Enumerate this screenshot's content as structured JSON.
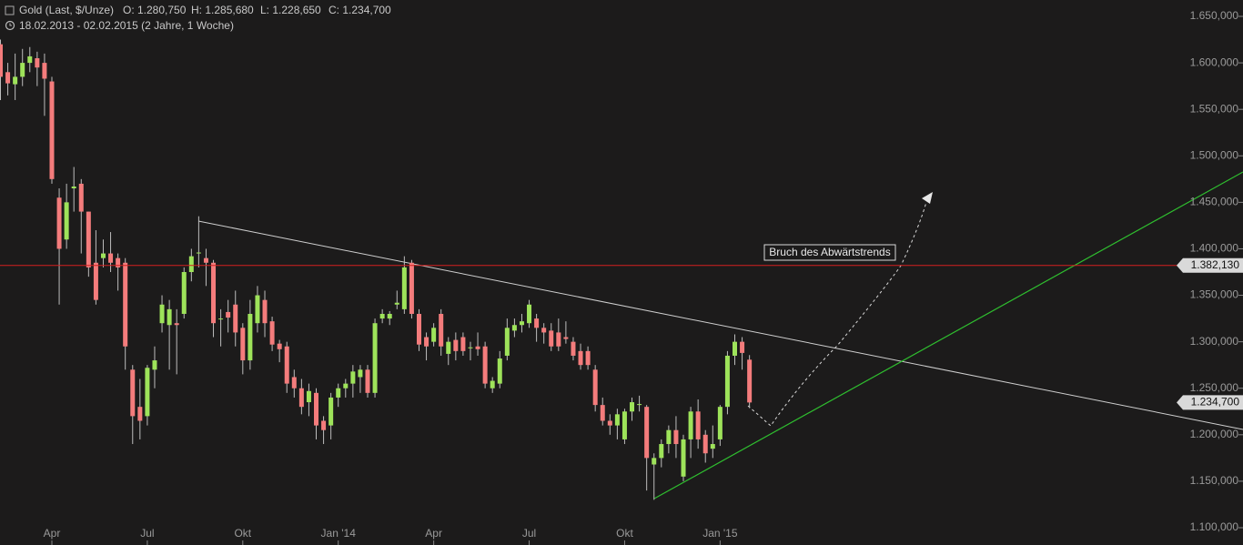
{
  "chart_data": {
    "type": "candlestick",
    "title": "Gold (Last, $/Unze)",
    "ohlc_labels": [
      "O: 1.280,750",
      "H: 1.285,680",
      "L: 1.228,650",
      "C: 1.234,700"
    ],
    "subtitle": "18.02.2013 - 02.02.2015 (2 Jahre, 1 Woche)",
    "annotation": "Bruch des Abwärtstrends",
    "up_color": "#9ee35a",
    "down_color": "#f47c7c",
    "x": [
      "2013-02-18",
      "2013-02-25",
      "2013-03-04",
      "2013-03-11",
      "2013-03-18",
      "2013-03-25",
      "2013-04-01",
      "2013-04-08",
      "2013-04-15",
      "2013-04-22",
      "2013-04-29",
      "2013-05-06",
      "2013-05-13",
      "2013-05-20",
      "2013-05-27",
      "2013-06-03",
      "2013-06-10",
      "2013-06-17",
      "2013-06-24",
      "2013-07-01",
      "2013-07-08",
      "2013-07-15",
      "2013-07-22",
      "2013-07-29",
      "2013-08-05",
      "2013-08-12",
      "2013-08-19",
      "2013-08-26",
      "2013-09-02",
      "2013-09-09",
      "2013-09-16",
      "2013-09-23",
      "2013-09-30",
      "2013-10-07",
      "2013-10-14",
      "2013-10-21",
      "2013-10-28",
      "2013-11-04",
      "2013-11-11",
      "2013-11-18",
      "2013-11-25",
      "2013-12-02",
      "2013-12-09",
      "2013-12-16",
      "2013-12-23",
      "2013-12-30",
      "2014-01-06",
      "2014-01-13",
      "2014-01-20",
      "2014-01-27",
      "2014-02-03",
      "2014-02-10",
      "2014-02-17",
      "2014-02-24",
      "2014-03-03",
      "2014-03-10",
      "2014-03-17",
      "2014-03-24",
      "2014-03-31",
      "2014-04-07",
      "2014-04-14",
      "2014-04-21",
      "2014-04-28",
      "2014-05-05",
      "2014-05-12",
      "2014-05-19",
      "2014-05-26",
      "2014-06-02",
      "2014-06-09",
      "2014-06-16",
      "2014-06-23",
      "2014-06-30",
      "2014-07-07",
      "2014-07-14",
      "2014-07-21",
      "2014-07-28",
      "2014-08-04",
      "2014-08-11",
      "2014-08-18",
      "2014-08-25",
      "2014-09-01",
      "2014-09-08",
      "2014-09-15",
      "2014-09-22",
      "2014-09-29",
      "2014-10-06",
      "2014-10-13",
      "2014-10-20",
      "2014-10-27",
      "2014-11-03",
      "2014-11-10",
      "2014-11-17",
      "2014-11-24",
      "2014-12-01",
      "2014-12-08",
      "2014-12-15",
      "2014-12-22",
      "2014-12-29",
      "2015-01-05",
      "2015-01-12",
      "2015-01-19",
      "2015-01-26",
      "2015-02-02"
    ],
    "open": [
      1620,
      1590,
      1577,
      1585,
      1600,
      1605,
      1600,
      1580,
      1455,
      1410,
      1465,
      1470,
      1440,
      1385,
      1390,
      1395,
      1390,
      1385,
      1270,
      1230,
      1220,
      1270,
      1320,
      1318,
      1320,
      1330,
      1375,
      1395,
      1390,
      1385,
      1325,
      1332,
      1340,
      1315,
      1280,
      1320,
      1345,
      1322,
      1298,
      1295,
      1262,
      1250,
      1235,
      1245,
      1215,
      1210,
      1240,
      1250,
      1255,
      1262,
      1270,
      1245,
      1325,
      1325,
      1340,
      1335,
      1385,
      1330,
      1305,
      1300,
      1330,
      1287,
      1302,
      1305,
      1293,
      1295,
      1295,
      1250,
      1255,
      1285,
      1312,
      1318,
      1320,
      1325,
      1315,
      1312,
      1310,
      1305,
      1300,
      1290,
      1290,
      1270,
      1232,
      1215,
      1210,
      1195,
      1225,
      1232,
      1230,
      1168,
      1175,
      1190,
      1205,
      1155,
      1195,
      1225,
      1200,
      1185,
      1195,
      1230,
      1285,
      1300,
      1280.75
    ],
    "high": [
      1625,
      1600,
      1610,
      1615,
      1617,
      1612,
      1610,
      1585,
      1465,
      1470,
      1488,
      1475,
      1440,
      1420,
      1410,
      1418,
      1395,
      1390,
      1275,
      1260,
      1275,
      1295,
      1350,
      1345,
      1335,
      1380,
      1400,
      1435,
      1400,
      1388,
      1335,
      1345,
      1355,
      1320,
      1345,
      1360,
      1355,
      1327,
      1302,
      1300,
      1270,
      1260,
      1255,
      1250,
      1220,
      1245,
      1255,
      1260,
      1275,
      1275,
      1275,
      1325,
      1335,
      1333,
      1355,
      1392,
      1388,
      1335,
      1310,
      1320,
      1335,
      1305,
      1310,
      1310,
      1300,
      1310,
      1300,
      1262,
      1290,
      1325,
      1325,
      1330,
      1345,
      1330,
      1320,
      1320,
      1325,
      1322,
      1305,
      1298,
      1295,
      1275,
      1240,
      1222,
      1228,
      1228,
      1240,
      1242,
      1232,
      1180,
      1195,
      1210,
      1220,
      1200,
      1230,
      1238,
      1205,
      1210,
      1232,
      1290,
      1308,
      1305,
      1285.68
    ],
    "low": [
      1560,
      1565,
      1560,
      1575,
      1590,
      1575,
      1543,
      1470,
      1340,
      1400,
      1440,
      1395,
      1370,
      1340,
      1380,
      1375,
      1355,
      1270,
      1190,
      1195,
      1210,
      1250,
      1310,
      1270,
      1265,
      1325,
      1365,
      1380,
      1360,
      1305,
      1295,
      1310,
      1295,
      1265,
      1270,
      1310,
      1305,
      1290,
      1278,
      1245,
      1240,
      1222,
      1220,
      1195,
      1190,
      1195,
      1230,
      1240,
      1240,
      1245,
      1240,
      1240,
      1320,
      1318,
      1335,
      1330,
      1325,
      1290,
      1280,
      1295,
      1285,
      1275,
      1280,
      1285,
      1280,
      1285,
      1250,
      1245,
      1250,
      1280,
      1305,
      1310,
      1315,
      1300,
      1298,
      1290,
      1290,
      1298,
      1280,
      1270,
      1270,
      1225,
      1210,
      1200,
      1195,
      1190,
      1215,
      1225,
      1140,
      1130,
      1165,
      1180,
      1175,
      1150,
      1175,
      1185,
      1170,
      1175,
      1188,
      1222,
      1275,
      1270,
      1228.65
    ],
    "close": [
      1585,
      1578,
      1585,
      1600,
      1607,
      1595,
      1583,
      1475,
      1400,
      1450,
      1467,
      1440,
      1380,
      1345,
      1395,
      1385,
      1380,
      1295,
      1220,
      1215,
      1272,
      1280,
      1340,
      1335,
      1318,
      1375,
      1392,
      1396,
      1385,
      1320,
      1325,
      1326,
      1310,
      1280,
      1330,
      1350,
      1320,
      1297,
      1292,
      1255,
      1250,
      1230,
      1247,
      1210,
      1205,
      1240,
      1250,
      1255,
      1268,
      1270,
      1245,
      1320,
      1330,
      1330,
      1342,
      1380,
      1330,
      1297,
      1295,
      1315,
      1295,
      1300,
      1290,
      1290,
      1294,
      1292,
      1255,
      1258,
      1282,
      1315,
      1318,
      1322,
      1340,
      1315,
      1310,
      1295,
      1295,
      1303,
      1285,
      1275,
      1275,
      1232,
      1215,
      1210,
      1222,
      1225,
      1235,
      1233,
      1175,
      1175,
      1190,
      1205,
      1190,
      1195,
      1225,
      1195,
      1180,
      1190,
      1230,
      1285,
      1300,
      1288,
      1234.7
    ],
    "ylim": [
      1100,
      1650
    ],
    "yticks": [
      {
        "value": 1100,
        "label": "1.100,000"
      },
      {
        "value": 1150,
        "label": "1.150,000"
      },
      {
        "value": 1200,
        "label": "1.200,000"
      },
      {
        "value": 1250,
        "label": "1.250,000"
      },
      {
        "value": 1300,
        "label": "1.300,000"
      },
      {
        "value": 1350,
        "label": "1.350,000"
      },
      {
        "value": 1400,
        "label": "1.400,000"
      },
      {
        "value": 1450,
        "label": "1.450,000"
      },
      {
        "value": 1500,
        "label": "1.500,000"
      },
      {
        "value": 1550,
        "label": "1.550,000"
      },
      {
        "value": 1600,
        "label": "1.600,000"
      },
      {
        "value": 1650,
        "label": "1.650,000"
      }
    ],
    "xticks": [
      {
        "value": "2013-04-08",
        "label": "Apr"
      },
      {
        "value": "2013-07-08",
        "label": "Jul"
      },
      {
        "value": "2013-10-07",
        "label": "Okt"
      },
      {
        "value": "2014-01-06",
        "label": "Jan '14"
      },
      {
        "value": "2014-04-07",
        "label": "Apr"
      },
      {
        "value": "2014-07-07",
        "label": "Jul"
      },
      {
        "value": "2014-10-06",
        "label": "Okt"
      },
      {
        "value": "2015-01-05",
        "label": "Jan '15"
      }
    ],
    "hline": {
      "value": 1382.13,
      "label": "1.382,130",
      "color": "#d42020"
    },
    "last_price": {
      "value": 1234.7,
      "label": "1.234,700"
    }
  }
}
